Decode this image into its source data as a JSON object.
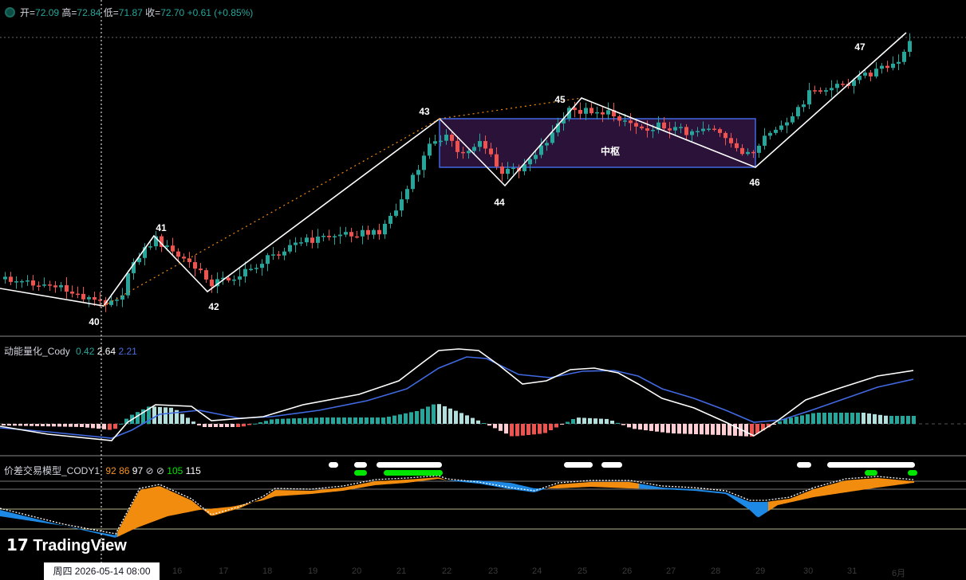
{
  "ohlc": {
    "open_label": "开=",
    "open": "72.09",
    "high_label": "高=",
    "high": "72.84",
    "low_label": "低=",
    "low": "71.87",
    "close_label": "收=",
    "close": "72.70",
    "change": "+0.61",
    "change_pct": "(+0.85%)"
  },
  "indicator1": {
    "name": "动能量化_Cody",
    "v1": "0.42",
    "v2": "2.64",
    "v3": "2.21",
    "c1": "#26a69a",
    "c2": "#ffffff",
    "c3": "#4a6ee0"
  },
  "indicator2": {
    "name": "价差交易模型_CODY1",
    "v1": "92",
    "v2": "86",
    "v3": "97",
    "v5": "105",
    "v6": "115",
    "sym": "⊘",
    "c1": "#f7931e",
    "c2": "#f7931e",
    "c3": "#ffffff",
    "c5": "#00e600",
    "c6": "#ffffff"
  },
  "watermark": "TradingView",
  "crosshair_date": "周四  2026-05-14   08:00",
  "x_ticks": [
    "16",
    "17",
    "18",
    "19",
    "20",
    "21",
    "22",
    "23",
    "24",
    "25",
    "26",
    "27",
    "28",
    "29",
    "30",
    "31",
    "6月"
  ],
  "chart_data": {
    "type": "candlestick",
    "wave_labels": [
      "40",
      "41",
      "42",
      "43",
      "44",
      "45",
      "46",
      "47"
    ],
    "zone_label": "中枢",
    "colors": {
      "up": "#26a69a",
      "down": "#ef5350",
      "zigzag": "#ffffff",
      "zone_border": "#4169e1",
      "zone_fill": "#2a1238",
      "macd_pos": "#26a69a",
      "macd_pos_fade": "#b2dfdb",
      "macd_neg": "#ef5350",
      "macd_neg_fade": "#ffcdd2",
      "dif": "#ffffff",
      "dea": "#4169e1",
      "orange": "#f28c0f",
      "blue": "#1e88e5",
      "signal": "#00e600"
    }
  }
}
